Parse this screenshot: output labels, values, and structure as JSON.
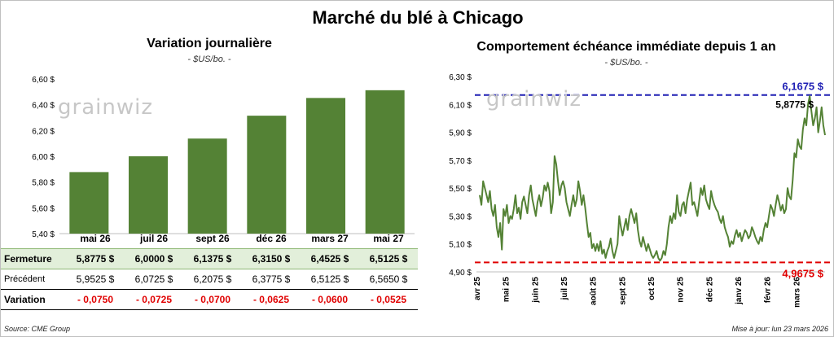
{
  "title": "Marché du blé à Chicago",
  "left": {
    "title": "Variation journalière",
    "unit": "- $US/bo. -",
    "watermark": "grainwiz"
  },
  "right": {
    "title": "Comportement  échéance immédiate depuis 1 an",
    "unit": "- $US/bo. -",
    "watermark": "grainwiz",
    "max_label": "6,1675  $",
    "min_label": "4,9675  $",
    "last_label": "5,8775 $"
  },
  "table": {
    "rows": [
      {
        "label": "Fermeture",
        "values": [
          "5,8775  $",
          "6,0000  $",
          "6,1375  $",
          "6,3150  $",
          "6,4525  $",
          "6,5125  $"
        ]
      },
      {
        "label": "Précédent",
        "values": [
          "5,9525  $",
          "6,0725  $",
          "6,2075  $",
          "6,3775  $",
          "6,5125  $",
          "6,5650  $"
        ]
      },
      {
        "label": "Variation",
        "values": [
          "- 0,0750",
          "- 0,0725",
          "- 0,0700",
          "- 0,0625",
          "- 0,0600",
          "- 0,0525"
        ]
      }
    ]
  },
  "footer": {
    "source": "Source: CME Group",
    "update": "Mise à jour: lun 23 mars 2026"
  },
  "colors": {
    "bar": "#548235",
    "line": "#548235",
    "max_line": "#1f1fb4",
    "min_line": "#e00000"
  },
  "chart_data": [
    {
      "type": "bar",
      "categories": [
        "mai 26",
        "juil 26",
        "sept 26",
        "déc 26",
        "mars 27",
        "mai 27"
      ],
      "values": [
        5.8775,
        6.0,
        6.1375,
        6.315,
        6.4525,
        6.5125
      ],
      "ylim": [
        5.4,
        6.6
      ],
      "yticks": [
        "5,40 $",
        "5,60 $",
        "5,80 $",
        "6,00 $",
        "6,20 $",
        "6,40 $",
        "6,60 $"
      ]
    },
    {
      "type": "line",
      "ylim": [
        4.9,
        6.3
      ],
      "yticks": [
        "4,90 $",
        "5,10 $",
        "5,30 $",
        "5,50 $",
        "5,70 $",
        "5,90 $",
        "6,10 $",
        "6,30 $"
      ],
      "xticks": [
        "avr 25",
        "mai 25",
        "juin 25",
        "juil 25",
        "août 25",
        "sept 25",
        "oct 25",
        "nov 25",
        "déc 25",
        "janv 26",
        "févr 26",
        "mars 26"
      ],
      "max": 6.1675,
      "min": 4.9675,
      "last": 5.8775,
      "values": [
        5.45,
        5.38,
        5.55,
        5.5,
        5.45,
        5.4,
        5.48,
        5.35,
        5.3,
        5.38,
        5.22,
        5.15,
        5.25,
        5.06,
        5.35,
        5.3,
        5.38,
        5.25,
        5.3,
        5.28,
        5.35,
        5.45,
        5.32,
        5.36,
        5.28,
        5.4,
        5.44,
        5.38,
        5.32,
        5.45,
        5.52,
        5.42,
        5.36,
        5.3,
        5.4,
        5.45,
        5.37,
        5.43,
        5.52,
        5.48,
        5.54,
        5.48,
        5.32,
        5.4,
        5.73,
        5.67,
        5.55,
        5.45,
        5.52,
        5.55,
        5.5,
        5.4,
        5.35,
        5.3,
        5.38,
        5.45,
        5.37,
        5.42,
        5.55,
        5.48,
        5.38,
        5.45,
        5.36,
        5.25,
        5.15,
        5.18,
        5.07,
        5.1,
        5.05,
        5.1,
        5.05,
        5.12,
        5.03,
        5.06,
        5.0,
        5.05,
        5.08,
        5.14,
        5.05,
        5.0,
        5.05,
        5.1,
        5.3,
        5.22,
        5.16,
        5.22,
        5.28,
        5.2,
        5.3,
        5.35,
        5.3,
        5.25,
        5.32,
        5.2,
        5.12,
        5.08,
        5.15,
        5.1,
        5.05,
        5.1,
        5.06,
        5.02,
        5.0,
        5.02,
        5.05,
        5.0,
        4.98,
        5.0,
        5.05,
        5.02,
        5.1,
        5.22,
        5.3,
        5.25,
        5.32,
        5.28,
        5.45,
        5.33,
        5.3,
        5.38,
        5.4,
        5.32,
        5.42,
        5.48,
        5.54,
        5.38,
        5.4,
        5.35,
        5.3,
        5.4,
        5.5,
        5.45,
        5.52,
        5.42,
        5.38,
        5.35,
        5.48,
        5.42,
        5.38,
        5.35,
        5.33,
        5.28,
        5.25,
        5.3,
        5.22,
        5.18,
        5.15,
        5.08,
        5.12,
        5.1,
        5.16,
        5.2,
        5.15,
        5.18,
        5.12,
        5.16,
        5.2,
        5.18,
        5.14,
        5.16,
        5.22,
        5.19,
        5.15,
        5.12,
        5.1,
        5.15,
        5.12,
        5.2,
        5.25,
        5.22,
        5.3,
        5.38,
        5.35,
        5.3,
        5.38,
        5.45,
        5.4,
        5.34,
        5.38,
        5.32,
        5.35,
        5.5,
        5.44,
        5.42,
        5.56,
        5.75,
        5.72,
        5.85,
        5.8,
        5.78,
        5.92,
        6.0,
        5.95,
        6.1,
        6.16,
        6.05,
        5.95,
        6.0,
        6.08,
        5.9,
        5.98,
        6.08,
        5.95,
        5.88
      ]
    }
  ]
}
